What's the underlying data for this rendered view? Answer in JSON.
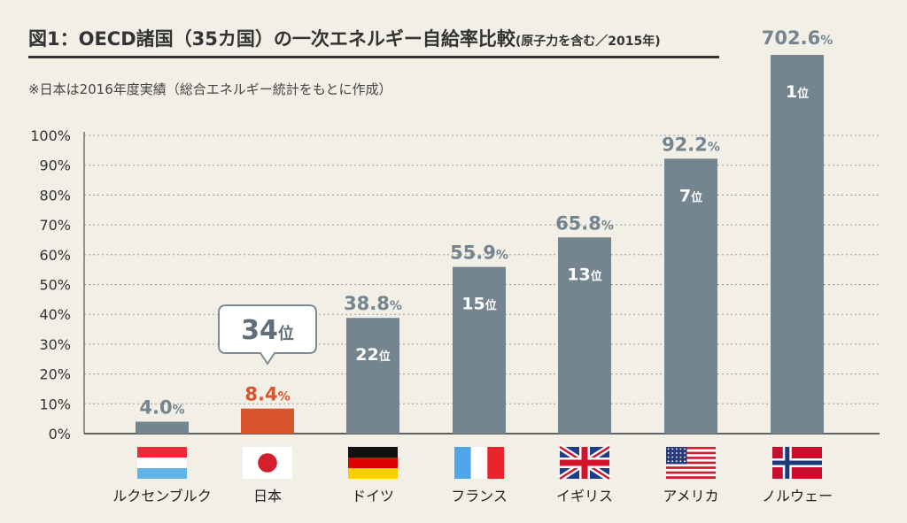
{
  "header": {
    "title": "図1：OECD諸国（35カ国）の一次エネルギー自給率比較",
    "title_note": "(原子力を含む／2015年)",
    "footnote": "※日本は2016年度実績（総合エネルギー統計をもとに作成）"
  },
  "chart_data": {
    "type": "bar",
    "categories": [
      "ルクセンブルク",
      "日本",
      "ドイツ",
      "フランス",
      "イギリス",
      "アメリカ",
      "ノルウェー"
    ],
    "values": [
      4.0,
      8.4,
      38.8,
      55.9,
      65.8,
      92.2,
      702.6
    ],
    "value_labels": [
      "4.0",
      "8.4",
      "38.8",
      "55.9",
      "65.8",
      "92.2",
      "702.6"
    ],
    "value_unit": "%",
    "ranks": [
      "",
      "",
      "22",
      "15",
      "13",
      "7",
      "1"
    ],
    "rank_suffix": "位",
    "callout_rank": "34",
    "highlight_index": 1,
    "yticks": [
      "0%",
      "10%",
      "20%",
      "30%",
      "40%",
      "50%",
      "60%",
      "70%",
      "80%",
      "90%",
      "100%"
    ],
    "ylim": [
      0,
      100
    ],
    "grid": true,
    "colors": {
      "bar": "#748590",
      "highlight": "#d9542a",
      "axis_text": "#333333"
    },
    "flags": [
      "luxembourg-flag",
      "japan-flag",
      "germany-flag",
      "france-flag",
      "uk-flag",
      "usa-flag",
      "norway-flag"
    ]
  }
}
